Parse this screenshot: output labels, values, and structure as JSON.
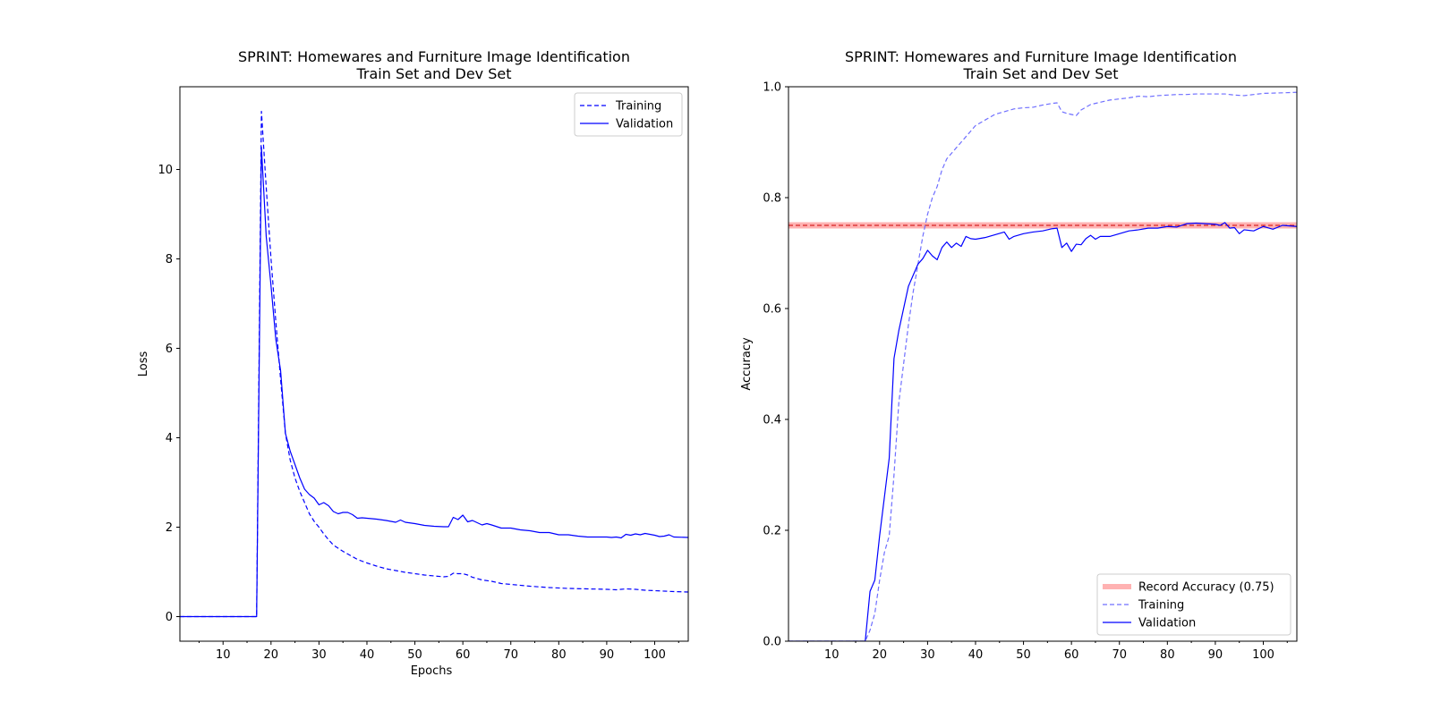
{
  "chart_data": [
    {
      "type": "line",
      "title": "SPRINT: Homewares and Furniture Image Identification",
      "subtitle": "Train Set and Dev Set",
      "xlabel": "Epochs",
      "ylabel": "Loss",
      "xlim": [
        1,
        107
      ],
      "ylim": [
        -0.55,
        11.85
      ],
      "xticks": [
        10,
        20,
        30,
        40,
        50,
        60,
        70,
        80,
        90,
        100
      ],
      "yticks": [
        0,
        2,
        4,
        6,
        8,
        10
      ],
      "grid": false,
      "legend_position": "upper-right",
      "series": [
        {
          "name": "Training",
          "style": "dashed",
          "color": "#0000ff",
          "x": [
            1,
            5,
            10,
            15,
            17,
            18,
            19,
            20,
            21,
            22,
            23,
            24,
            25,
            26,
            27,
            28,
            29,
            30,
            31,
            32,
            33,
            34,
            35,
            36,
            37,
            38,
            39,
            40,
            42,
            44,
            46,
            48,
            50,
            52,
            54,
            56,
            57,
            58,
            59,
            60,
            61,
            62,
            64,
            66,
            68,
            70,
            74,
            78,
            82,
            86,
            90,
            92,
            94,
            96,
            98,
            100,
            104,
            107
          ],
          "y": [
            0,
            0,
            0,
            0,
            0,
            11.3,
            9.6,
            8.0,
            6.6,
            5.3,
            4.1,
            3.5,
            3.1,
            2.8,
            2.55,
            2.3,
            2.13,
            2.0,
            1.85,
            1.72,
            1.6,
            1.53,
            1.46,
            1.4,
            1.34,
            1.28,
            1.24,
            1.2,
            1.13,
            1.07,
            1.03,
            0.99,
            0.96,
            0.93,
            0.91,
            0.89,
            0.9,
            0.97,
            0.96,
            0.96,
            0.93,
            0.88,
            0.82,
            0.79,
            0.74,
            0.72,
            0.68,
            0.65,
            0.63,
            0.62,
            0.61,
            0.6,
            0.62,
            0.61,
            0.59,
            0.58,
            0.56,
            0.55
          ]
        },
        {
          "name": "Validation",
          "style": "solid",
          "color": "#0000ff",
          "x": [
            1,
            5,
            10,
            15,
            17,
            18,
            19,
            20,
            21,
            22,
            23,
            24,
            25,
            26,
            27,
            28,
            29,
            30,
            31,
            32,
            33,
            34,
            35,
            36,
            37,
            38,
            39,
            40,
            42,
            44,
            46,
            47,
            48,
            50,
            52,
            54,
            56,
            57,
            58,
            59,
            60,
            61,
            62,
            63,
            64,
            65,
            66,
            68,
            70,
            72,
            74,
            76,
            78,
            80,
            82,
            84,
            86,
            88,
            90,
            91,
            92,
            93,
            94,
            95,
            96,
            97,
            98,
            100,
            101,
            102,
            103,
            104,
            107
          ],
          "y": [
            0,
            0,
            0,
            0,
            0,
            10.5,
            8.5,
            7.4,
            6.2,
            5.5,
            4.1,
            3.7,
            3.4,
            3.1,
            2.85,
            2.73,
            2.65,
            2.5,
            2.55,
            2.48,
            2.35,
            2.3,
            2.33,
            2.33,
            2.28,
            2.2,
            2.21,
            2.2,
            2.18,
            2.15,
            2.11,
            2.16,
            2.11,
            2.08,
            2.04,
            2.02,
            2.01,
            2.01,
            2.22,
            2.17,
            2.27,
            2.12,
            2.15,
            2.1,
            2.05,
            2.08,
            2.05,
            1.98,
            1.98,
            1.94,
            1.92,
            1.88,
            1.88,
            1.83,
            1.83,
            1.8,
            1.78,
            1.78,
            1.78,
            1.77,
            1.78,
            1.76,
            1.84,
            1.82,
            1.85,
            1.83,
            1.86,
            1.82,
            1.79,
            1.8,
            1.83,
            1.78,
            1.77
          ]
        }
      ]
    },
    {
      "type": "line",
      "title": "SPRINT: Homewares and Furniture Image Identification",
      "subtitle": "Train Set and Dev Set",
      "xlabel": "",
      "ylabel": "Accuracy",
      "xlim": [
        1,
        107
      ],
      "ylim": [
        0.0,
        1.0
      ],
      "xticks": [
        10,
        20,
        30,
        40,
        50,
        60,
        70,
        80,
        90,
        100
      ],
      "yticks": [
        0.0,
        0.2,
        0.4,
        0.6,
        0.8,
        1.0
      ],
      "ytick_labels": [
        "0.0",
        "0.2",
        "0.4",
        "0.6",
        "0.8",
        "1.0"
      ],
      "grid": false,
      "legend_position": "lower-right",
      "reference_line": {
        "name": "Record Accuracy (0.75)",
        "value": 0.75,
        "band_color": "#ff0000",
        "line_color": "#cc0000"
      },
      "series": [
        {
          "name": "Training",
          "style": "dashed",
          "color": "#6f6fff",
          "x": [
            1,
            5,
            10,
            15,
            17,
            18,
            19,
            20,
            21,
            22,
            23,
            24,
            25,
            26,
            27,
            28,
            29,
            30,
            31,
            32,
            33,
            34,
            35,
            36,
            37,
            38,
            39,
            40,
            42,
            44,
            46,
            48,
            50,
            52,
            54,
            56,
            57,
            58,
            59,
            60,
            61,
            62,
            64,
            66,
            68,
            70,
            72,
            74,
            76,
            78,
            80,
            82,
            84,
            86,
            88,
            90,
            92,
            94,
            96,
            98,
            100,
            104,
            107
          ],
          "y": [
            0,
            0,
            0,
            0,
            0,
            0.02,
            0.05,
            0.11,
            0.16,
            0.19,
            0.3,
            0.43,
            0.5,
            0.57,
            0.63,
            0.68,
            0.73,
            0.77,
            0.8,
            0.82,
            0.85,
            0.87,
            0.88,
            0.89,
            0.9,
            0.91,
            0.92,
            0.93,
            0.94,
            0.95,
            0.955,
            0.96,
            0.962,
            0.963,
            0.967,
            0.97,
            0.971,
            0.955,
            0.952,
            0.95,
            0.948,
            0.958,
            0.968,
            0.972,
            0.976,
            0.978,
            0.98,
            0.983,
            0.982,
            0.984,
            0.985,
            0.986,
            0.986,
            0.987,
            0.987,
            0.987,
            0.987,
            0.985,
            0.984,
            0.986,
            0.988,
            0.989,
            0.99
          ]
        },
        {
          "name": "Validation",
          "style": "solid",
          "color": "#0000ff",
          "x": [
            1,
            5,
            10,
            15,
            17,
            18,
            19,
            20,
            21,
            22,
            23,
            24,
            25,
            26,
            27,
            28,
            29,
            30,
            31,
            32,
            33,
            34,
            35,
            36,
            37,
            38,
            39,
            40,
            42,
            44,
            46,
            47,
            48,
            50,
            52,
            54,
            56,
            57,
            58,
            59,
            60,
            61,
            62,
            63,
            64,
            65,
            66,
            68,
            70,
            72,
            74,
            76,
            78,
            80,
            82,
            84,
            86,
            88,
            90,
            91,
            92,
            93,
            94,
            95,
            96,
            98,
            100,
            102,
            104,
            107
          ],
          "y": [
            0,
            0,
            0,
            0,
            0,
            0.09,
            0.11,
            0.19,
            0.26,
            0.33,
            0.51,
            0.56,
            0.6,
            0.64,
            0.66,
            0.68,
            0.69,
            0.705,
            0.695,
            0.688,
            0.71,
            0.72,
            0.71,
            0.718,
            0.712,
            0.73,
            0.726,
            0.725,
            0.728,
            0.733,
            0.738,
            0.725,
            0.73,
            0.735,
            0.738,
            0.74,
            0.744,
            0.745,
            0.71,
            0.718,
            0.703,
            0.716,
            0.715,
            0.726,
            0.732,
            0.725,
            0.73,
            0.73,
            0.735,
            0.74,
            0.742,
            0.745,
            0.745,
            0.748,
            0.747,
            0.753,
            0.754,
            0.753,
            0.752,
            0.75,
            0.755,
            0.745,
            0.746,
            0.735,
            0.742,
            0.74,
            0.748,
            0.743,
            0.75,
            0.748
          ]
        }
      ]
    }
  ]
}
